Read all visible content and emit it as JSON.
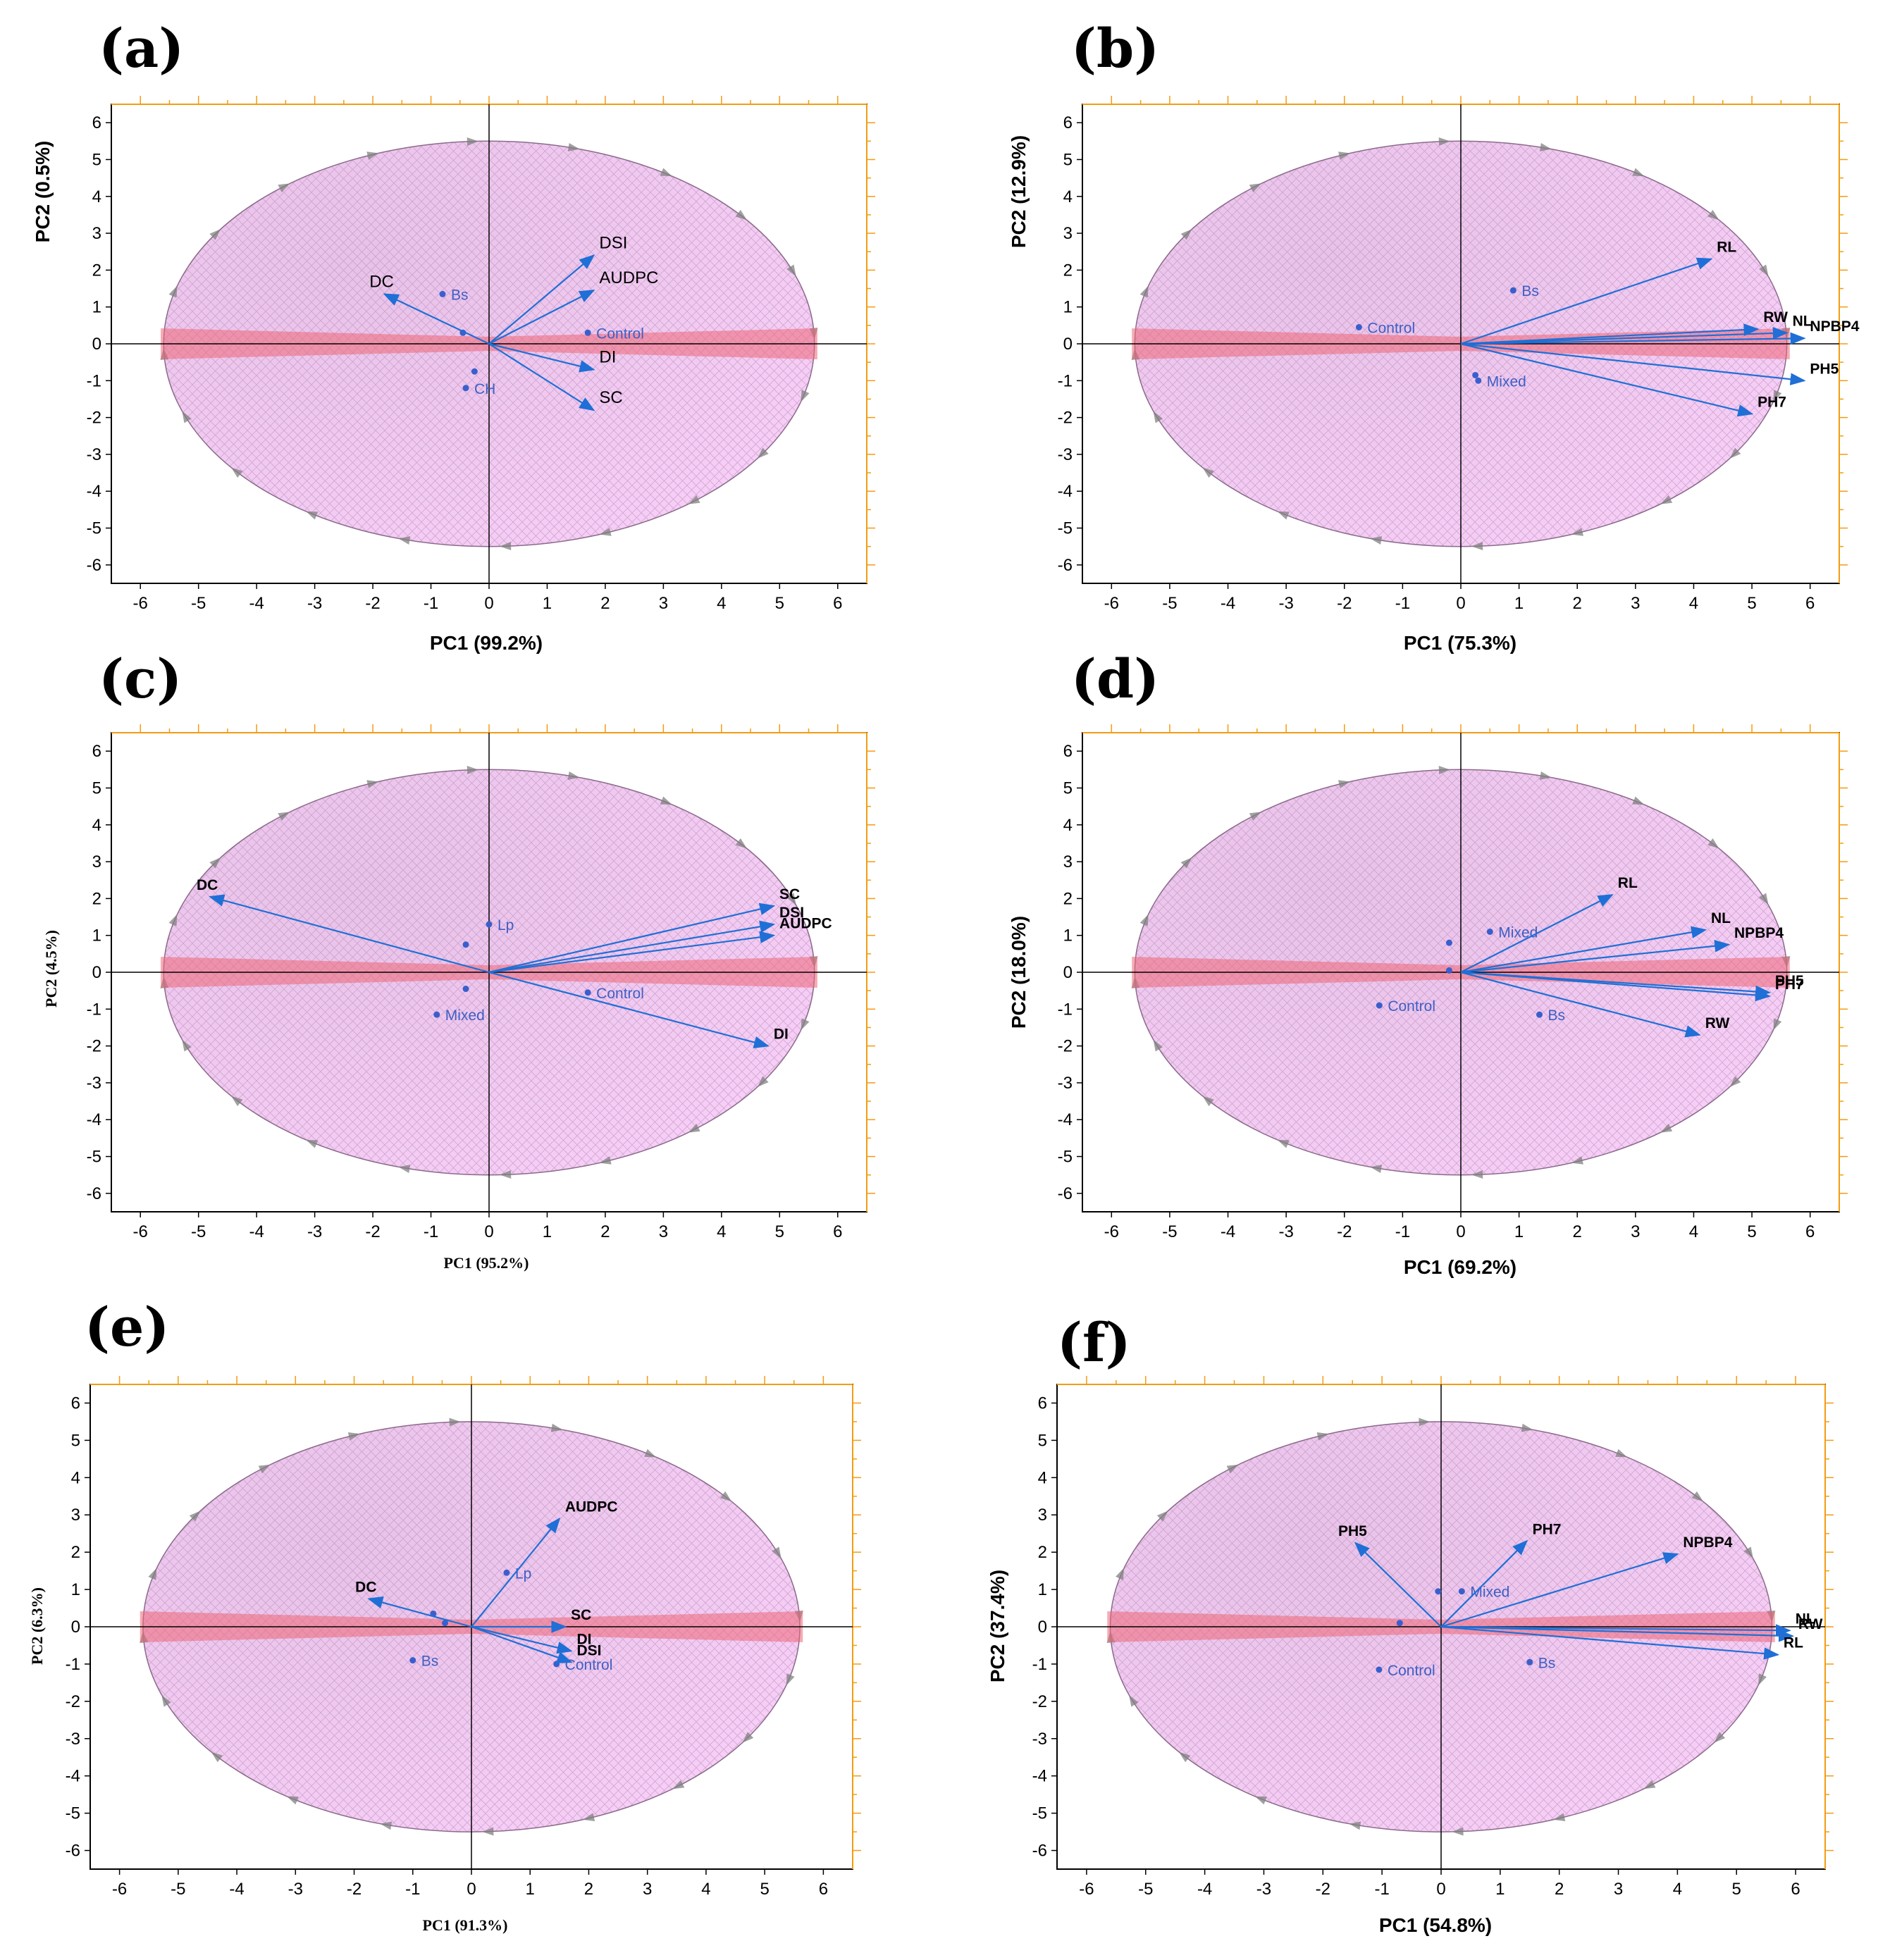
{
  "figure": {
    "colors": {
      "ellipse_fill": "#f4c6f4",
      "ellipse_stroke": "#8a6a8a",
      "band": "#ee6677",
      "arrow": "#1f6fd6",
      "point": "#3a5fcd",
      "frame_accent": "#f39c12"
    }
  },
  "chart_data": [
    {
      "panel": "(a)",
      "type": "scatter",
      "subtype": "pca-biplot",
      "xlabel": "PC1 (99.2%)",
      "ylabel": "PC2 (0.5%)",
      "label_style": "bold",
      "xlim": [
        -6.5,
        6.5
      ],
      "ylim": [
        -6.5,
        6.5
      ],
      "xticks": [
        -6,
        -5,
        -4,
        -3,
        -2,
        -1,
        0,
        1,
        2,
        3,
        4,
        5,
        6
      ],
      "yticks": [
        6,
        5,
        4,
        3,
        2,
        1,
        0,
        -1,
        -2,
        -3,
        -4,
        -5,
        -6
      ],
      "loadings": [
        {
          "label": "DSI",
          "x": 1.8,
          "y": 2.4
        },
        {
          "label": "AUDPC",
          "x": 1.8,
          "y": 1.45
        },
        {
          "label": "DC",
          "x": -1.8,
          "y": 1.35
        },
        {
          "label": "DI",
          "x": 1.8,
          "y": -0.7
        },
        {
          "label": "SC",
          "x": 1.8,
          "y": -1.8
        }
      ],
      "scores": [
        {
          "label": "Bs",
          "x": -0.8,
          "y": 1.35
        },
        {
          "label": "Control",
          "x": 1.7,
          "y": 0.3
        },
        {
          "label": "CH",
          "x": -0.4,
          "y": -1.2
        },
        {
          "label": "",
          "x": -0.45,
          "y": 0.3
        },
        {
          "label": "",
          "x": -0.25,
          "y": -0.75
        }
      ]
    },
    {
      "panel": "(b)",
      "type": "scatter",
      "subtype": "pca-biplot",
      "xlabel": "PC1 (75.3%)",
      "ylabel": "PC2 (12.9%)",
      "label_style": "bold",
      "xlim": [
        -6.5,
        6.5
      ],
      "ylim": [
        -6.5,
        6.5
      ],
      "xticks": [
        -6,
        -5,
        -4,
        -3,
        -2,
        -1,
        0,
        1,
        2,
        3,
        4,
        5,
        6
      ],
      "yticks": [
        6,
        5,
        4,
        3,
        2,
        1,
        0,
        -1,
        -2,
        -3,
        -4,
        -5,
        -6
      ],
      "loadings": [
        {
          "label": "RL",
          "x": 4.3,
          "y": 2.3
        },
        {
          "label": "RW",
          "x": 5.1,
          "y": 0.4
        },
        {
          "label": "NL",
          "x": 5.6,
          "y": 0.3
        },
        {
          "label": "NPBP4",
          "x": 5.9,
          "y": 0.15
        },
        {
          "label": "PH5",
          "x": 5.9,
          "y": -1.0
        },
        {
          "label": "PH7",
          "x": 5.0,
          "y": -1.9
        }
      ],
      "scores": [
        {
          "label": "Bs",
          "x": 0.9,
          "y": 1.45
        },
        {
          "label": "Control",
          "x": -1.75,
          "y": 0.45
        },
        {
          "label": "Mixed",
          "x": 0.3,
          "y": -1.0
        },
        {
          "label": "",
          "x": 0.25,
          "y": -0.85
        }
      ]
    },
    {
      "panel": "(c)",
      "type": "scatter",
      "subtype": "pca-biplot",
      "xlabel": "PC1 (95.2%)",
      "ylabel": "PC2 (4.5%)",
      "label_style": "serif",
      "xlim": [
        -6.5,
        6.5
      ],
      "ylim": [
        -6.5,
        6.5
      ],
      "xticks": [
        -6,
        -5,
        -4,
        -3,
        -2,
        -1,
        0,
        1,
        2,
        3,
        4,
        5,
        6
      ],
      "yticks": [
        6,
        5,
        4,
        3,
        2,
        1,
        0,
        -1,
        -2,
        -3,
        -4,
        -5,
        -6
      ],
      "loadings": [
        {
          "label": "DC",
          "x": -4.8,
          "y": 2.05
        },
        {
          "label": "SC",
          "x": 4.9,
          "y": 1.8
        },
        {
          "label": "DSI",
          "x": 4.9,
          "y": 1.3
        },
        {
          "label": "AUDPC",
          "x": 4.9,
          "y": 1.0
        },
        {
          "label": "DI",
          "x": 4.8,
          "y": -2.0
        }
      ],
      "scores": [
        {
          "label": "Lp",
          "x": 0.0,
          "y": 1.3
        },
        {
          "label": "Control",
          "x": 1.7,
          "y": -0.55
        },
        {
          "label": "Mixed",
          "x": -0.9,
          "y": -1.15
        },
        {
          "label": "",
          "x": -0.4,
          "y": 0.75
        },
        {
          "label": "",
          "x": -0.4,
          "y": -0.45
        }
      ]
    },
    {
      "panel": "(d)",
      "type": "scatter",
      "subtype": "pca-biplot",
      "xlabel": "PC1 (69.2%)",
      "ylabel": "PC2 (18.0%)",
      "label_style": "bold",
      "xlim": [
        -6.5,
        6.5
      ],
      "ylim": [
        -6.5,
        6.5
      ],
      "xticks": [
        -6,
        -5,
        -4,
        -3,
        -2,
        -1,
        0,
        1,
        2,
        3,
        4,
        5,
        6
      ],
      "yticks": [
        6,
        5,
        4,
        3,
        2,
        1,
        0,
        -1,
        -2,
        -3,
        -4,
        -5,
        -6
      ],
      "loadings": [
        {
          "label": "RL",
          "x": 2.6,
          "y": 2.1
        },
        {
          "label": "NL",
          "x": 4.2,
          "y": 1.15
        },
        {
          "label": "NPBP4",
          "x": 4.6,
          "y": 0.75
        },
        {
          "label": "PH5",
          "x": 5.3,
          "y": -0.55
        },
        {
          "label": "PH7",
          "x": 5.3,
          "y": -0.65
        },
        {
          "label": "RW",
          "x": 4.1,
          "y": -1.7
        }
      ],
      "scores": [
        {
          "label": "Mixed",
          "x": 0.5,
          "y": 1.1
        },
        {
          "label": "Control",
          "x": -1.4,
          "y": -0.9
        },
        {
          "label": "Bs",
          "x": 1.35,
          "y": -1.15
        },
        {
          "label": "",
          "x": -0.2,
          "y": 0.8
        },
        {
          "label": "",
          "x": -0.2,
          "y": 0.05
        }
      ]
    },
    {
      "panel": "(e)",
      "type": "scatter",
      "subtype": "pca-biplot",
      "xlabel": "PC1 (91.3%)",
      "ylabel": "PC2 (6.3%)",
      "label_style": "serif",
      "xlim": [
        -6.5,
        6.5
      ],
      "ylim": [
        -6.5,
        6.5
      ],
      "xticks": [
        -6,
        -5,
        -4,
        -3,
        -2,
        -1,
        0,
        1,
        2,
        3,
        4,
        5,
        6
      ],
      "yticks": [
        6,
        5,
        4,
        3,
        2,
        1,
        0,
        -1,
        -2,
        -3,
        -4,
        -5,
        -6
      ],
      "loadings": [
        {
          "label": "AUDPC",
          "x": 1.5,
          "y": 2.9
        },
        {
          "label": "DC",
          "x": -1.75,
          "y": 0.75
        },
        {
          "label": "SC",
          "x": 1.6,
          "y": 0.0
        },
        {
          "label": "DI",
          "x": 1.7,
          "y": -0.65
        },
        {
          "label": "DSI",
          "x": 1.7,
          "y": -0.95
        }
      ],
      "scores": [
        {
          "label": "Lp",
          "x": 0.6,
          "y": 1.45
        },
        {
          "label": "Bs",
          "x": -1.0,
          "y": -0.9
        },
        {
          "label": "Control",
          "x": 1.45,
          "y": -1.0
        },
        {
          "label": "",
          "x": -0.65,
          "y": 0.35
        },
        {
          "label": "",
          "x": -0.45,
          "y": 0.1
        }
      ]
    },
    {
      "panel": "(f)",
      "type": "scatter",
      "subtype": "pca-biplot",
      "xlabel": "PC1 (54.8%)",
      "ylabel": "PC2 (37.4%)",
      "label_style": "bold",
      "xlim": [
        -6.5,
        6.5
      ],
      "ylim": [
        -6.5,
        6.5
      ],
      "xticks": [
        -6,
        -5,
        -4,
        -3,
        -2,
        -1,
        0,
        1,
        2,
        3,
        4,
        5,
        6
      ],
      "yticks": [
        6,
        5,
        4,
        3,
        2,
        1,
        0,
        -1,
        -2,
        -3,
        -4,
        -5,
        -6
      ],
      "loadings": [
        {
          "label": "PH5",
          "x": -1.45,
          "y": 2.25
        },
        {
          "label": "PH7",
          "x": 1.45,
          "y": 2.3
        },
        {
          "label": "NPBP4",
          "x": 4.0,
          "y": 1.95
        },
        {
          "label": "NL",
          "x": 5.9,
          "y": -0.1
        },
        {
          "label": "RW",
          "x": 5.95,
          "y": -0.25
        },
        {
          "label": "RL",
          "x": 5.7,
          "y": -0.75
        }
      ],
      "scores": [
        {
          "label": "Mixed",
          "x": 0.35,
          "y": 0.95
        },
        {
          "label": "Control",
          "x": -1.05,
          "y": -1.15
        },
        {
          "label": "Bs",
          "x": 1.5,
          "y": -0.95
        },
        {
          "label": "",
          "x": -0.05,
          "y": 0.95
        },
        {
          "label": "",
          "x": -0.7,
          "y": 0.1
        }
      ]
    }
  ]
}
